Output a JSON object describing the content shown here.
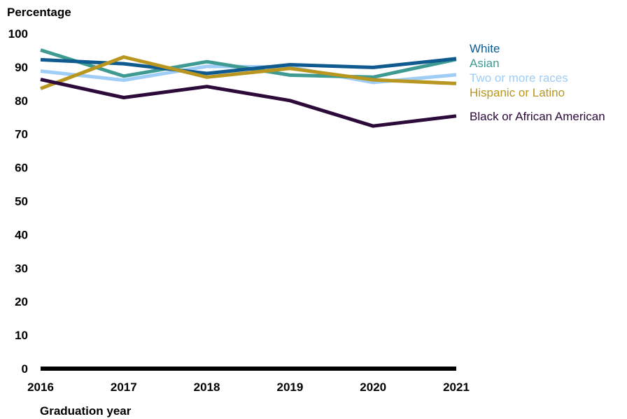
{
  "chart_data": {
    "type": "line",
    "title": "",
    "ylabel": "Percentage",
    "xlabel": "Graduation year",
    "x": [
      "2016",
      "2017",
      "2018",
      "2019",
      "2020",
      "2021"
    ],
    "ylim": [
      0,
      100
    ],
    "yticks": [
      "0",
      "10",
      "20",
      "30",
      "40",
      "50",
      "60",
      "70",
      "80",
      "90",
      "100"
    ],
    "grid": false,
    "legend": "right-end labels",
    "series": [
      {
        "name": "Two or more races",
        "color": "#9fcdf5",
        "values": [
          88.8,
          86.1,
          90.2,
          90.0,
          85.4,
          87.7
        ]
      },
      {
        "name": "Asian",
        "color": "#3f9b92",
        "values": [
          95.1,
          87.3,
          91.6,
          87.6,
          87.0,
          92.3
        ]
      },
      {
        "name": "White",
        "color": "#0f5a8f",
        "values": [
          92.2,
          91.0,
          88.1,
          90.7,
          89.9,
          92.5
        ]
      },
      {
        "name": "Hispanic or Latino",
        "color": "#b8961f",
        "values": [
          83.6,
          93.0,
          87.0,
          89.6,
          86.2,
          85.1
        ]
      },
      {
        "name": "Black or African American",
        "color": "#2c0a3a",
        "values": [
          86.3,
          80.9,
          84.2,
          80.0,
          72.4,
          75.4
        ]
      }
    ]
  }
}
